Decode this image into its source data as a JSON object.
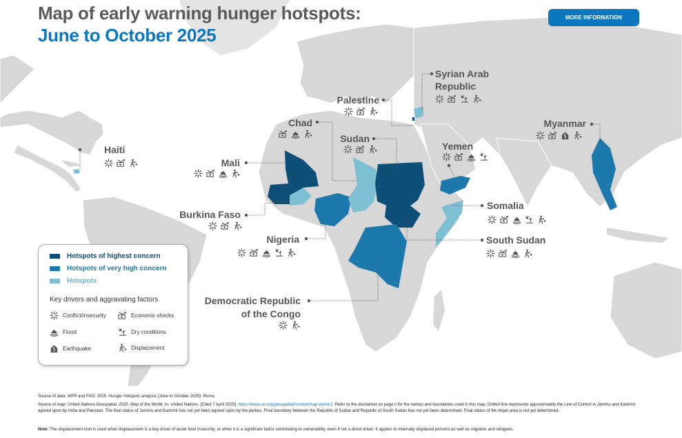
{
  "header": {
    "title_line1": "Map of early warning hunger hotspots:",
    "title_line2": "June to October 2025",
    "more_info_button": "MORE INFORMATION"
  },
  "colors": {
    "highest": "#0e4f78",
    "very_high": "#1d78ab",
    "hotspot": "#7fbfd3",
    "land": "#d7d7d7",
    "accent": "#0a77bf"
  },
  "hotspots": [
    {
      "name": "Haiti",
      "level": "hotspot",
      "drivers": [
        "conflict-icon",
        "economic-shocks-icon",
        "displacement-icon"
      ]
    },
    {
      "name": "Mali",
      "level": "highest",
      "drivers": [
        "conflict-icon",
        "economic-shocks-icon",
        "flood-icon",
        "displacement-icon"
      ]
    },
    {
      "name": "Burkina Faso",
      "level": "hotspot",
      "drivers": [
        "conflict-icon",
        "economic-shocks-icon",
        "displacement-icon"
      ]
    },
    {
      "name": "Nigeria",
      "level": "very_high",
      "drivers": [
        "conflict-icon",
        "economic-shocks-icon",
        "flood-icon",
        "dry-conditions-icon",
        "displacement-icon"
      ]
    },
    {
      "name": "Chad",
      "level": "hotspot",
      "drivers": [
        "economic-shocks-icon",
        "flood-icon",
        "displacement-icon"
      ]
    },
    {
      "name": "Sudan",
      "level": "highest",
      "drivers": [
        "conflict-icon",
        "economic-shocks-icon",
        "displacement-icon"
      ]
    },
    {
      "name": "Palestine",
      "level": "highest",
      "drivers": [
        "conflict-icon",
        "economic-shocks-icon",
        "displacement-icon"
      ]
    },
    {
      "name": "Syrian Arab Republic",
      "level": "hotspot",
      "drivers": [
        "conflict-icon",
        "economic-shocks-icon",
        "dry-conditions-icon",
        "displacement-icon"
      ]
    },
    {
      "name": "Yemen",
      "level": "very_high",
      "drivers": [
        "conflict-icon",
        "economic-shocks-icon",
        "flood-icon",
        "dry-conditions-icon"
      ]
    },
    {
      "name": "Somalia",
      "level": "hotspot",
      "drivers": [
        "conflict-icon",
        "economic-shocks-icon",
        "flood-icon",
        "dry-conditions-icon",
        "displacement-icon"
      ]
    },
    {
      "name": "South Sudan",
      "level": "highest",
      "drivers": [
        "conflict-icon",
        "economic-shocks-icon",
        "flood-icon",
        "displacement-icon"
      ]
    },
    {
      "name": "Democratic Republic of the Congo",
      "level": "very_high",
      "drivers": [
        "conflict-icon",
        "displacement-icon"
      ]
    },
    {
      "name": "Myanmar",
      "level": "very_high",
      "drivers": [
        "conflict-icon",
        "economic-shocks-icon",
        "earthquake-icon",
        "displacement-icon"
      ]
    }
  ],
  "labels": {
    "haiti": "Haiti",
    "mali": "Mali",
    "burkina": "Burkina Faso",
    "nigeria": "Nigeria",
    "chad": "Chad",
    "sudan": "Sudan",
    "palestine": "Palestine",
    "syria_1": "Syrian Arab",
    "syria_2": "Republic",
    "yemen": "Yemen",
    "somalia": "Somalia",
    "south_sudan": "South Sudan",
    "drc_1": "Democratic Republic",
    "drc_2": "of the Congo",
    "myanmar": "Myanmar"
  },
  "legend": {
    "highest": "Hotspots of highest concern",
    "very_high": "Hotspots of very high concern",
    "hotspot": "Hotspots",
    "drivers_title": "Key drivers and aggravating factors",
    "conflict": "Conflict/insecurity",
    "economic": "Economic shocks",
    "flood": "Flood",
    "dry": "Dry conditions",
    "earthquake": "Earthquake",
    "displacement": "Displacement"
  },
  "footer": {
    "data_source_prefix": "Source of data: WFP and FAO. 2025. ",
    "data_source_title": "Hunger Hotspots analysis (June to October 2025)",
    "data_source_suffix": ". Rome.",
    "map_source_prefix": "Source of map: United Nations Geospatial. 2025. Map of the World. In: ",
    "map_source_un": "United Nations",
    "map_source_cited": ". [Cited 7 April 2025]. ",
    "map_source_link": "https://www.un.org/geospatial/content/map-world-1",
    "map_source_rest": ". Refer to the disclaimer on page ii for the names and boundaries used in this map. Dotted line represents approximately the Line of Control in Jammu and Kashmir agreed upon by India and Pakistan. The final status of Jammu and Kashmir has not yet been agreed upon by the parties. Final boundary between the Republic of Sudan and Republic of South Sudan has not yet been determined. Final status of the Abyei area is not yet determined.",
    "note_label": "Note:",
    "note_text": " The displacement icon is used when displacement is a key driver of acute food insecurity, or when it is a significant factor contributing to vulnerability, even if not a direct driver. It applies to internally displaced persons as well as migrants and refugees."
  }
}
